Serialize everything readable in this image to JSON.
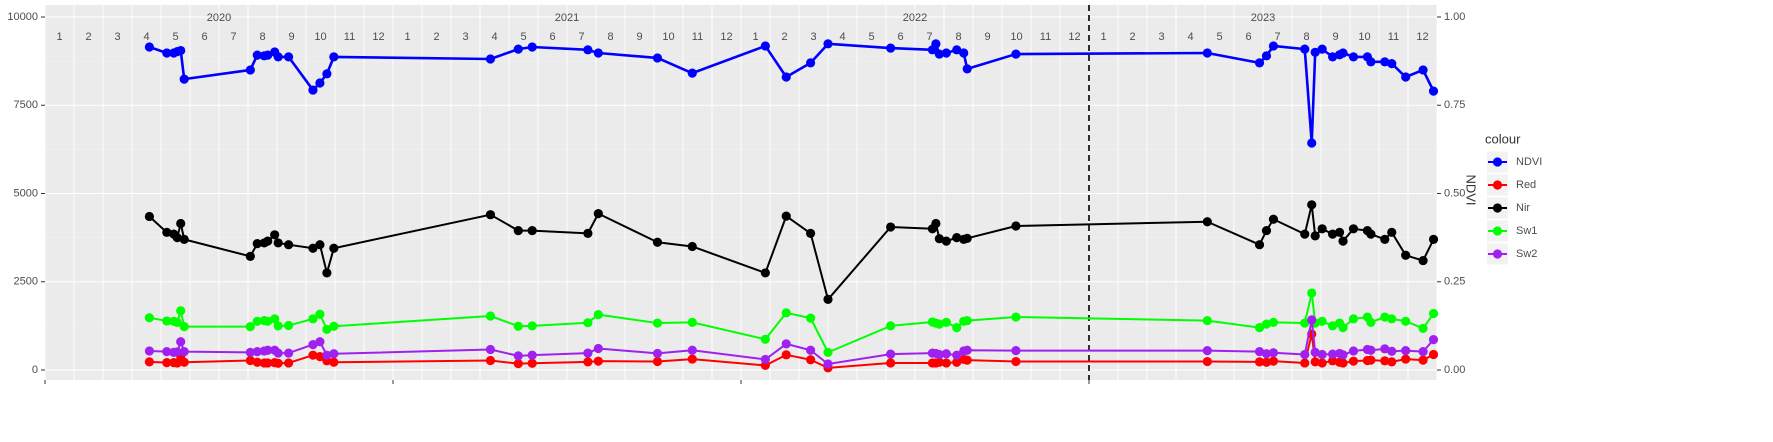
{
  "chart_data": {
    "type": "line",
    "x": [
      2020.3,
      2020.35,
      2020.37,
      2020.38,
      2020.39,
      2020.4,
      2020.59,
      2020.61,
      2020.63,
      2020.64,
      2020.66,
      2020.67,
      2020.7,
      2020.77,
      2020.79,
      2020.81,
      2020.83,
      2021.28,
      2021.36,
      2021.4,
      2021.56,
      2021.59,
      2021.76,
      2021.86,
      2022.07,
      2022.13,
      2022.2,
      2022.25,
      2022.43,
      2022.55,
      2022.56,
      2022.57,
      2022.59,
      2022.62,
      2022.64,
      2022.65,
      2022.79,
      2023.34,
      2023.49,
      2023.51,
      2023.53,
      2023.62,
      2023.64,
      2023.65,
      2023.67,
      2023.7,
      2023.72,
      2023.73,
      2023.76,
      2023.8,
      2023.81,
      2023.85,
      2023.87,
      2023.91,
      2023.96,
      2023.99
    ],
    "series": [
      {
        "name": "NDVI",
        "color": "#0000ff",
        "axis": "y2",
        "values": [
          0.915,
          0.898,
          0.898,
          0.902,
          0.905,
          0.824,
          0.85,
          0.892,
          0.89,
          0.892,
          0.901,
          0.887,
          0.887,
          0.793,
          0.813,
          0.839,
          0.887,
          0.881,
          0.909,
          0.915,
          0.907,
          0.898,
          0.884,
          0.841,
          0.918,
          0.83,
          0.87,
          0.924,
          0.912,
          0.907,
          0.924,
          0.895,
          0.898,
          0.907,
          0.898,
          0.853,
          0.895,
          0.898,
          0.87,
          0.89,
          0.918,
          0.909,
          0.643,
          0.9,
          0.909,
          0.887,
          0.893,
          0.898,
          0.887,
          0.887,
          0.873,
          0.873,
          0.868,
          0.83,
          0.85,
          0.79
        ]
      },
      {
        "name": "Red",
        "color": "#ff0000",
        "values": [
          230,
          210,
          210,
          200,
          390,
          220,
          270,
          220,
          200,
          200,
          210,
          190,
          200,
          420,
          380,
          260,
          220,
          270,
          180,
          190,
          230,
          250,
          240,
          310,
          130,
          430,
          290,
          60,
          200,
          200,
          200,
          220,
          200,
          220,
          300,
          280,
          240,
          240,
          230,
          220,
          250,
          200,
          1020,
          230,
          200,
          260,
          220,
          200,
          250,
          270,
          280,
          260,
          230,
          310,
          280,
          440
        ]
      },
      {
        "name": "Nir",
        "color": "#000000",
        "values": [
          4350,
          3900,
          3850,
          3750,
          4150,
          3700,
          3220,
          3580,
          3600,
          3650,
          3830,
          3600,
          3550,
          3450,
          3550,
          2750,
          3450,
          4400,
          3950,
          3950,
          3870,
          4430,
          3620,
          3500,
          2750,
          4360,
          3870,
          2000,
          4050,
          4000,
          4150,
          3720,
          3650,
          3750,
          3700,
          3730,
          4080,
          4200,
          3550,
          3950,
          4270,
          3850,
          4680,
          3800,
          4000,
          3850,
          3900,
          3650,
          4000,
          3950,
          3850,
          3700,
          3900,
          3250,
          3100,
          3700
        ]
      },
      {
        "name": "Sw1",
        "color": "#00ff00",
        "values": [
          1480,
          1390,
          1380,
          1350,
          1680,
          1230,
          1230,
          1380,
          1400,
          1380,
          1450,
          1250,
          1260,
          1450,
          1580,
          1150,
          1240,
          1530,
          1240,
          1250,
          1340,
          1570,
          1330,
          1350,
          870,
          1620,
          1470,
          500,
          1250,
          1360,
          1330,
          1300,
          1350,
          1200,
          1380,
          1400,
          1500,
          1400,
          1200,
          1300,
          1350,
          1330,
          2180,
          1330,
          1380,
          1250,
          1330,
          1200,
          1450,
          1500,
          1350,
          1500,
          1450,
          1380,
          1180,
          1600
        ]
      },
      {
        "name": "Sw2",
        "color": "#a020f0",
        "values": [
          540,
          520,
          500,
          510,
          800,
          520,
          500,
          520,
          540,
          560,
          560,
          480,
          480,
          720,
          800,
          420,
          460,
          580,
          400,
          420,
          480,
          610,
          470,
          560,
          300,
          740,
          560,
          170,
          450,
          480,
          470,
          440,
          460,
          420,
          540,
          560,
          550,
          550,
          520,
          460,
          490,
          440,
          1420,
          500,
          440,
          450,
          470,
          430,
          540,
          580,
          560,
          600,
          530,
          550,
          520,
          860
        ]
      }
    ],
    "xlim": [
      2020,
      2024
    ],
    "xticks": [
      2020,
      2021,
      2022,
      2023
    ],
    "years": [
      "2020",
      "2021",
      "2022",
      "2023"
    ],
    "months": [
      "1",
      "2",
      "3",
      "4",
      "5",
      "6",
      "7",
      "8",
      "9",
      "10",
      "11",
      "12"
    ],
    "vline": 2023,
    "ylim": [
      -283,
      10340
    ],
    "yticks": [
      0,
      2500,
      5000,
      7500,
      10000
    ],
    "y2lim": [
      -0.0283,
      1.034
    ],
    "y2ticks": [
      {
        "value": 0,
        "label": "0.00"
      },
      {
        "value": 0.25,
        "label": "0.25"
      },
      {
        "value": 0.5,
        "label": "0.50"
      },
      {
        "value": 0.75,
        "label": "0.75"
      },
      {
        "value": 1,
        "label": "1.00"
      }
    ],
    "y2_label": "NDVI",
    "legend_title": "colour",
    "legend": "right",
    "grid": true
  }
}
